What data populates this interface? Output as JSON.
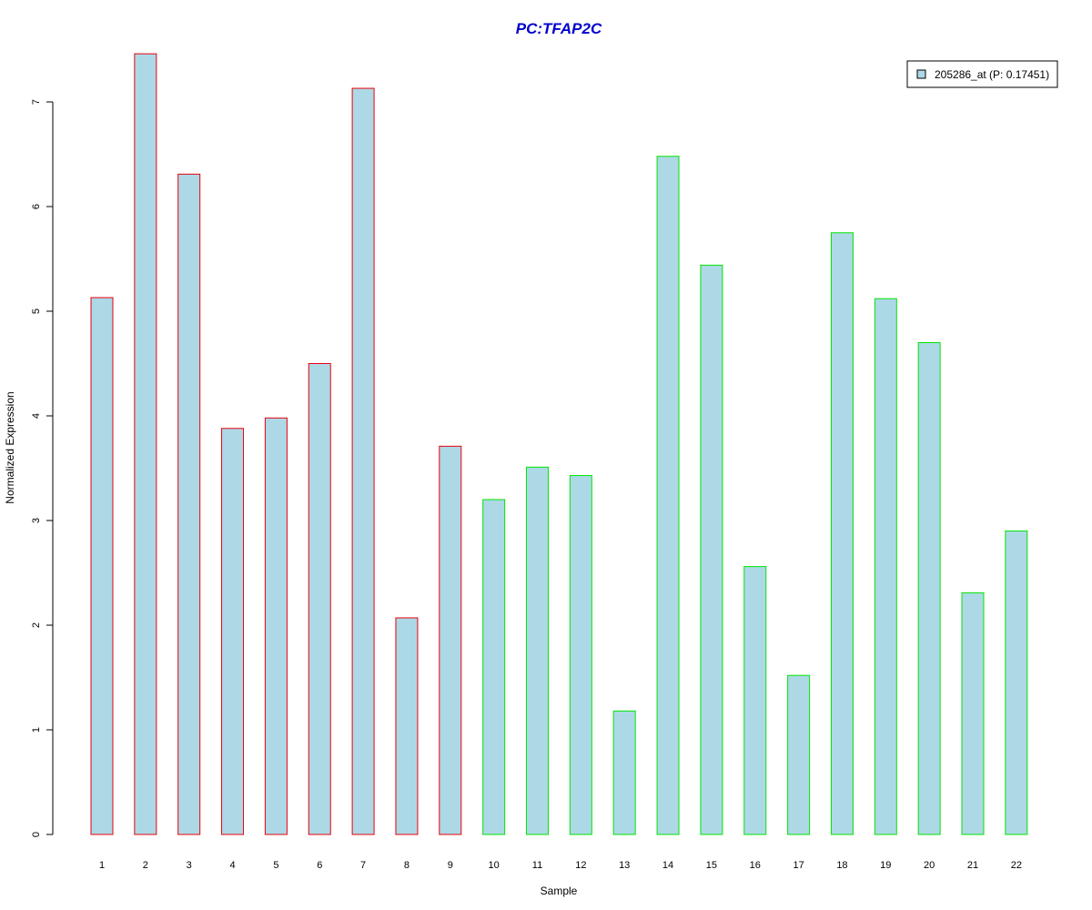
{
  "chart_data": {
    "type": "bar",
    "title": "PC:TFAP2C",
    "xlabel": "Sample",
    "ylabel": "Normalized Expression",
    "categories": [
      "1",
      "2",
      "3",
      "4",
      "5",
      "6",
      "7",
      "8",
      "9",
      "10",
      "11",
      "12",
      "13",
      "14",
      "15",
      "16",
      "17",
      "18",
      "19",
      "20",
      "21",
      "22"
    ],
    "series": [
      {
        "name": "205286_at (P: 0.17451)",
        "values": [
          5.13,
          7.46,
          6.31,
          3.88,
          3.98,
          4.5,
          7.13,
          2.07,
          3.71,
          3.2,
          3.51,
          3.43,
          1.18,
          6.48,
          5.44,
          2.56,
          1.52,
          5.75,
          5.12,
          4.7,
          2.31,
          2.9
        ]
      }
    ],
    "group_border_colors": [
      "#e8000b",
      "#e8000b",
      "#e8000b",
      "#e8000b",
      "#e8000b",
      "#e8000b",
      "#e8000b",
      "#e8000b",
      "#e8000b",
      "#00e600",
      "#00e600",
      "#00e600",
      "#00e600",
      "#00e600",
      "#00e600",
      "#00e600",
      "#00e600",
      "#00e600",
      "#00e600",
      "#00e600",
      "#00e600",
      "#00e600"
    ],
    "bar_fill": "#add8e6",
    "title_color": "#0000cd",
    "ylim": [
      0,
      7.5
    ],
    "yticks": [
      0,
      1,
      2,
      3,
      4,
      5,
      6,
      7
    ],
    "legend_position": "top-right",
    "grid": false
  }
}
